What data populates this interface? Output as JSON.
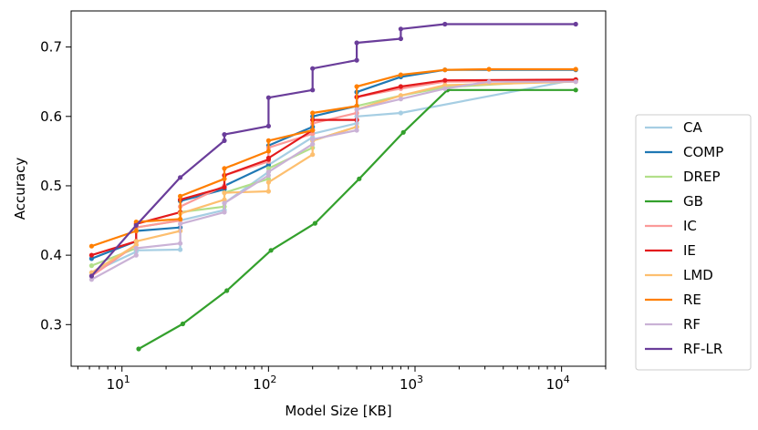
{
  "chart_data": {
    "type": "line",
    "title": "",
    "xlabel": "Model Size [KB]",
    "ylabel": "Accuracy",
    "xscale": "log",
    "xlim": [
      4.5,
      20000
    ],
    "ylim": [
      0.24,
      0.752
    ],
    "x_ticks": [
      {
        "value": 10,
        "base": "10",
        "exp": "1"
      },
      {
        "value": 100,
        "base": "10",
        "exp": "2"
      },
      {
        "value": 1000,
        "base": "10",
        "exp": "3"
      },
      {
        "value": 10000,
        "base": "10",
        "exp": "4"
      }
    ],
    "y_ticks": [
      {
        "value": 0.3,
        "label": "0.3"
      },
      {
        "value": 0.4,
        "label": "0.4"
      },
      {
        "value": 0.5,
        "label": "0.5"
      },
      {
        "value": 0.6,
        "label": "0.6"
      },
      {
        "value": 0.7,
        "label": "0.7"
      }
    ],
    "grid": false,
    "legend_position": "right",
    "series": [
      {
        "name": "CA",
        "color": "#a6cee3",
        "points": [
          [
            6.2,
            0.375
          ],
          [
            12.5,
            0.405
          ],
          [
            12.5,
            0.407
          ],
          [
            25,
            0.408
          ],
          [
            25,
            0.45
          ],
          [
            50,
            0.465
          ],
          [
            50,
            0.475
          ],
          [
            100,
            0.52
          ],
          [
            100,
            0.53
          ],
          [
            200,
            0.57
          ],
          [
            200,
            0.575
          ],
          [
            400,
            0.59
          ],
          [
            400,
            0.6
          ],
          [
            800,
            0.605
          ],
          [
            12500,
            0.653
          ]
        ]
      },
      {
        "name": "COMP",
        "color": "#1f78b4",
        "points": [
          [
            6.2,
            0.395
          ],
          [
            12.5,
            0.42
          ],
          [
            12.5,
            0.435
          ],
          [
            25,
            0.44
          ],
          [
            25,
            0.478
          ],
          [
            50,
            0.495
          ],
          [
            50,
            0.5
          ],
          [
            100,
            0.53
          ],
          [
            100,
            0.558
          ],
          [
            200,
            0.585
          ],
          [
            200,
            0.6
          ],
          [
            400,
            0.615
          ],
          [
            400,
            0.635
          ],
          [
            800,
            0.657
          ],
          [
            1600,
            0.667
          ],
          [
            12500,
            0.667
          ]
        ]
      },
      {
        "name": "DREP",
        "color": "#b2df8a",
        "points": [
          [
            6.2,
            0.385
          ],
          [
            12.5,
            0.41
          ],
          [
            12.5,
            0.44
          ],
          [
            25,
            0.45
          ],
          [
            25,
            0.462
          ],
          [
            50,
            0.47
          ],
          [
            50,
            0.49
          ],
          [
            100,
            0.51
          ],
          [
            100,
            0.525
          ],
          [
            200,
            0.555
          ],
          [
            200,
            0.565
          ],
          [
            400,
            0.585
          ],
          [
            400,
            0.615
          ],
          [
            800,
            0.63
          ],
          [
            1600,
            0.642
          ],
          [
            12500,
            0.653
          ]
        ]
      },
      {
        "name": "GB",
        "color": "#33a02c",
        "points": [
          [
            13,
            0.265
          ],
          [
            26,
            0.301
          ],
          [
            52,
            0.349
          ],
          [
            104,
            0.407
          ],
          [
            208,
            0.446
          ],
          [
            416,
            0.51
          ],
          [
            832,
            0.577
          ],
          [
            1664,
            0.638
          ],
          [
            12500,
            0.638
          ]
        ]
      },
      {
        "name": "IC",
        "color": "#fb9a99",
        "points": [
          [
            6.2,
            0.37
          ],
          [
            12.5,
            0.415
          ],
          [
            12.5,
            0.44
          ],
          [
            25,
            0.45
          ],
          [
            25,
            0.47
          ],
          [
            50,
            0.5
          ],
          [
            50,
            0.515
          ],
          [
            100,
            0.535
          ],
          [
            100,
            0.555
          ],
          [
            200,
            0.575
          ],
          [
            200,
            0.59
          ],
          [
            400,
            0.605
          ],
          [
            400,
            0.628
          ],
          [
            800,
            0.64
          ],
          [
            1600,
            0.65
          ],
          [
            12500,
            0.652
          ]
        ]
      },
      {
        "name": "IE",
        "color": "#e31a1c",
        "points": [
          [
            6.2,
            0.4
          ],
          [
            12.5,
            0.42
          ],
          [
            12.5,
            0.445
          ],
          [
            25,
            0.462
          ],
          [
            25,
            0.48
          ],
          [
            50,
            0.498
          ],
          [
            50,
            0.515
          ],
          [
            100,
            0.538
          ],
          [
            100,
            0.54
          ],
          [
            200,
            0.58
          ],
          [
            200,
            0.595
          ],
          [
            400,
            0.595
          ],
          [
            400,
            0.628
          ],
          [
            800,
            0.643
          ],
          [
            1600,
            0.652
          ],
          [
            12500,
            0.653
          ]
        ]
      },
      {
        "name": "LMD",
        "color": "#fdbf6f",
        "points": [
          [
            6.2,
            0.375
          ],
          [
            12.5,
            0.415
          ],
          [
            12.5,
            0.42
          ],
          [
            25,
            0.435
          ],
          [
            25,
            0.46
          ],
          [
            50,
            0.48
          ],
          [
            50,
            0.49
          ],
          [
            100,
            0.492
          ],
          [
            100,
            0.505
          ],
          [
            200,
            0.545
          ],
          [
            200,
            0.565
          ],
          [
            400,
            0.585
          ],
          [
            400,
            0.61
          ],
          [
            800,
            0.63
          ],
          [
            1600,
            0.645
          ],
          [
            12500,
            0.65
          ]
        ]
      },
      {
        "name": "RE",
        "color": "#ff7f00",
        "points": [
          [
            6.2,
            0.413
          ],
          [
            12.5,
            0.435
          ],
          [
            12.5,
            0.448
          ],
          [
            25,
            0.452
          ],
          [
            25,
            0.485
          ],
          [
            50,
            0.51
          ],
          [
            50,
            0.525
          ],
          [
            100,
            0.55
          ],
          [
            100,
            0.565
          ],
          [
            200,
            0.58
          ],
          [
            200,
            0.605
          ],
          [
            400,
            0.615
          ],
          [
            400,
            0.643
          ],
          [
            800,
            0.66
          ],
          [
            1600,
            0.667
          ],
          [
            3200,
            0.668
          ],
          [
            12500,
            0.668
          ]
        ]
      },
      {
        "name": "RF",
        "color": "#cab2d6",
        "points": [
          [
            6.2,
            0.365
          ],
          [
            12.5,
            0.4
          ],
          [
            12.5,
            0.41
          ],
          [
            25,
            0.417
          ],
          [
            25,
            0.445
          ],
          [
            50,
            0.462
          ],
          [
            50,
            0.475
          ],
          [
            100,
            0.515
          ],
          [
            100,
            0.52
          ],
          [
            200,
            0.56
          ],
          [
            200,
            0.567
          ],
          [
            400,
            0.58
          ],
          [
            400,
            0.61
          ],
          [
            800,
            0.625
          ],
          [
            1600,
            0.64
          ],
          [
            3200,
            0.65
          ],
          [
            12500,
            0.65
          ]
        ]
      },
      {
        "name": "RF-LR",
        "color": "#6a3d9a",
        "points": [
          [
            6.2,
            0.37
          ],
          [
            12.5,
            0.443
          ],
          [
            25,
            0.512
          ],
          [
            50,
            0.565
          ],
          [
            50,
            0.574
          ],
          [
            100,
            0.586
          ],
          [
            100,
            0.627
          ],
          [
            200,
            0.638
          ],
          [
            200,
            0.669
          ],
          [
            400,
            0.681
          ],
          [
            400,
            0.706
          ],
          [
            800,
            0.712
          ],
          [
            800,
            0.726
          ],
          [
            1600,
            0.733
          ],
          [
            12500,
            0.733
          ]
        ]
      }
    ]
  }
}
